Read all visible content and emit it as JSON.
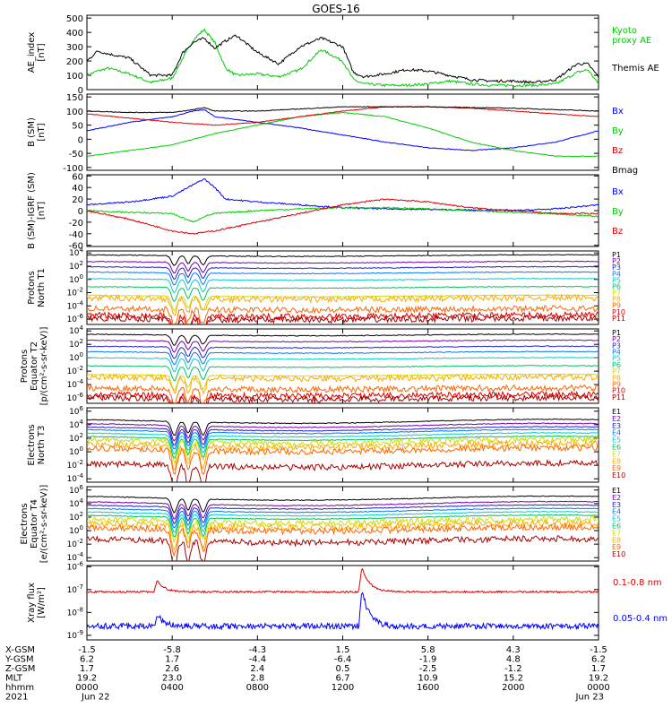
{
  "title": "GOES-16",
  "chart_data": [
    {
      "type": "line",
      "id": "ae",
      "ylabel": "AE_index\n[nT]",
      "yticks": [
        "500",
        "400",
        "300",
        "200",
        "100",
        "0"
      ],
      "ylim": [
        0,
        520
      ],
      "series": [
        {
          "name": "Kyoto\nproxy AE",
          "color": "#00cc00",
          "t": [
            0,
            0.5,
            1,
            2,
            3,
            4,
            4.5,
            5,
            5.5,
            6,
            6.5,
            7,
            8,
            9,
            10,
            11,
            12,
            12.5,
            13,
            14,
            15,
            16,
            17,
            18,
            19,
            20,
            21,
            22,
            23,
            23.5,
            24
          ],
          "values": [
            100,
            130,
            150,
            110,
            50,
            80,
            220,
            350,
            420,
            330,
            150,
            100,
            110,
            90,
            140,
            280,
            200,
            70,
            40,
            30,
            30,
            40,
            60,
            40,
            30,
            30,
            30,
            40,
            120,
            140,
            40
          ]
        },
        {
          "name": "Themis AE",
          "color": "#000000",
          "t": [
            0,
            0.5,
            1,
            2,
            3,
            4,
            4.5,
            5,
            5.5,
            6,
            6.5,
            7,
            8,
            9,
            10,
            11,
            12,
            12.5,
            13,
            14,
            15,
            16,
            17,
            18,
            19,
            20,
            21,
            22,
            23,
            23.5,
            24
          ],
          "values": [
            200,
            270,
            250,
            220,
            100,
            100,
            260,
            330,
            360,
            290,
            340,
            380,
            260,
            180,
            300,
            360,
            300,
            120,
            90,
            110,
            140,
            130,
            100,
            70,
            60,
            60,
            50,
            70,
            180,
            180,
            90
          ]
        }
      ]
    },
    {
      "type": "line",
      "id": "bsm",
      "ylabel": "B (SM)\n[nT]",
      "yticks": [
        "150",
        "100",
        "50",
        "0",
        "-50",
        "-100"
      ],
      "ylim": [
        -110,
        160
      ],
      "series": [
        {
          "name": "Bx",
          "color": "#0000ff",
          "t": [
            0,
            2,
            4,
            5,
            5.5,
            6,
            8,
            10,
            12,
            14,
            16,
            18,
            20,
            22,
            24
          ],
          "values": [
            30,
            60,
            80,
            100,
            105,
            80,
            60,
            40,
            15,
            -10,
            -30,
            -40,
            -30,
            -10,
            30
          ]
        },
        {
          "name": "By",
          "color": "#00cc00",
          "t": [
            0,
            2,
            4,
            5,
            6,
            8,
            10,
            12,
            14,
            16,
            18,
            20,
            22,
            24
          ],
          "values": [
            -60,
            -40,
            -20,
            0,
            20,
            50,
            80,
            95,
            80,
            40,
            -10,
            -40,
            -60,
            -60
          ]
        },
        {
          "name": "Bz",
          "color": "#dd0000",
          "t": [
            0,
            2,
            4,
            6,
            8,
            10,
            12,
            14,
            16,
            18,
            20,
            22,
            24
          ],
          "values": [
            90,
            75,
            60,
            50,
            60,
            80,
            100,
            115,
            115,
            110,
            100,
            90,
            80
          ]
        },
        {
          "name": "Bmag",
          "color": "#000000",
          "t": [
            0,
            2,
            4,
            5,
            5.5,
            6,
            8,
            12,
            16,
            20,
            24
          ],
          "values": [
            100,
            95,
            95,
            105,
            112,
            100,
            100,
            115,
            115,
            110,
            100
          ]
        }
      ]
    },
    {
      "type": "line",
      "id": "bigrf",
      "ylabel": "B (SM)-IGRF (SM)\n[nT]",
      "yticks": [
        "60",
        "40",
        "20",
        "0",
        "-20",
        "-40",
        "-60"
      ],
      "ylim": [
        -62,
        62
      ],
      "series": [
        {
          "name": "Bx",
          "color": "#0000ff",
          "t": [
            0,
            2,
            4,
            5,
            5.5,
            6,
            6.5,
            8,
            10,
            12,
            14,
            16,
            18,
            20,
            22,
            24
          ],
          "values": [
            10,
            15,
            25,
            45,
            55,
            40,
            20,
            15,
            10,
            5,
            3,
            2,
            1,
            0,
            3,
            10
          ]
        },
        {
          "name": "By",
          "color": "#00cc00",
          "t": [
            0,
            2,
            4,
            5,
            5.5,
            6,
            8,
            10,
            12,
            14,
            16,
            18,
            20,
            22,
            24
          ],
          "values": [
            0,
            -3,
            -5,
            -20,
            -10,
            -5,
            0,
            3,
            5,
            5,
            3,
            0,
            -3,
            -6,
            -10
          ]
        },
        {
          "name": "Bz",
          "color": "#dd0000",
          "t": [
            0,
            2,
            4,
            5,
            6,
            8,
            10,
            12,
            14,
            16,
            18,
            20,
            22,
            24
          ],
          "values": [
            0,
            -15,
            -35,
            -40,
            -35,
            -20,
            -5,
            10,
            20,
            15,
            5,
            0,
            -5,
            -5
          ]
        }
      ]
    },
    {
      "type": "line",
      "id": "p1",
      "log": true,
      "ylabel": "Protons\nNorth T1",
      "yticks": [
        4,
        2,
        0,
        -2,
        -4,
        -6
      ],
      "ylim": [
        -6.8,
        4.3
      ],
      "channels": [
        "P1",
        "P2",
        "P3",
        "P4",
        "P5",
        "P6",
        "P7",
        "P8",
        "P9",
        "P10",
        "P11"
      ],
      "channel_colors": [
        "#000000",
        "#7700aa",
        "#2222cc",
        "#0077ff",
        "#00cccc",
        "#00c060",
        "#ccdd00",
        "#ffaa00",
        "#ff6600",
        "#dd0000",
        "#aa0000"
      ],
      "levels": [
        3.6,
        2.6,
        1.8,
        1.0,
        0.0,
        -1.2,
        -2.5,
        -2.9,
        -4.5,
        -5.5,
        -6.0
      ],
      "dip_depth": 2.5
    },
    {
      "type": "line",
      "id": "p2",
      "log": true,
      "ylabel": "Protons\nEquator T2\n[p/(cm²-s-sr-keV)]",
      "yticks": [
        4,
        2,
        0,
        -2,
        -4,
        -6
      ],
      "ylim": [
        -6.8,
        4.3
      ],
      "channels": [
        "P1",
        "P2",
        "P3",
        "P4",
        "P5",
        "P6",
        "P7",
        "P8",
        "P9",
        "P10",
        "P11"
      ],
      "channel_colors": [
        "#000000",
        "#7700aa",
        "#2222cc",
        "#0077ff",
        "#00cccc",
        "#00c060",
        "#ccdd00",
        "#ffaa00",
        "#ff6600",
        "#dd0000",
        "#aa0000"
      ],
      "levels": [
        3.4,
        2.5,
        1.6,
        0.8,
        -0.1,
        -1.3,
        -2.6,
        -3.0,
        -4.6,
        -5.6,
        -6.1
      ],
      "dip_depth": 2.5
    },
    {
      "type": "line",
      "id": "e3",
      "log": true,
      "ylabel": "Electrons\nNorth T3",
      "yticks": [
        6,
        4,
        2,
        0,
        -2,
        -4
      ],
      "ylim": [
        -4.5,
        6.5
      ],
      "channels": [
        "E1",
        "E2",
        "E3",
        "E4",
        "E5",
        "E6",
        "E7",
        "E8",
        "E9",
        "E10"
      ],
      "channel_colors": [
        "#000000",
        "#7700aa",
        "#2222cc",
        "#0077ff",
        "#00cccc",
        "#00c060",
        "#ccdd00",
        "#ffaa00",
        "#ff6600",
        "#aa0000"
      ],
      "levels": [
        4.5,
        3.9,
        3.4,
        3.0,
        2.5,
        2.0,
        1.5,
        0.9,
        0.3,
        -2.0
      ],
      "dip_depth": 3.5
    },
    {
      "type": "line",
      "id": "e4",
      "log": true,
      "ylabel": "Electrons\nEquator T4\n[e/(cm²-s-sr-keV)]",
      "yticks": [
        6,
        4,
        2,
        0,
        -2,
        -4
      ],
      "ylim": [
        -4.5,
        6.5
      ],
      "channels": [
        "E1",
        "E2",
        "E3",
        "E4",
        "E5",
        "E6",
        "E7",
        "E8",
        "E9",
        "E10"
      ],
      "channel_colors": [
        "#000000",
        "#7700aa",
        "#2222cc",
        "#0077ff",
        "#00cccc",
        "#00c060",
        "#ccdd00",
        "#ffaa00",
        "#ff6600",
        "#aa0000"
      ],
      "levels": [
        4.8,
        4.0,
        3.5,
        3.0,
        2.5,
        2.0,
        1.4,
        0.8,
        0.2,
        -1.5
      ],
      "dip_depth": 3.5
    },
    {
      "type": "line",
      "id": "xray",
      "log": true,
      "ylabel": "Xray flux\n[W/m²]",
      "yticks": [
        -6,
        -7,
        -8,
        -9
      ],
      "ylim": [
        -9.2,
        -5.95
      ],
      "series": [
        {
          "name": "0.1-0.8 nm",
          "color": "#dd0000",
          "base": -7.1,
          "peaks": [
            [
              3.3,
              0.5
            ],
            [
              12.9,
              1.1
            ]
          ]
        },
        {
          "name": "0.05-0.4 nm",
          "color": "#0000ff",
          "base": -8.6,
          "peaks": [
            [
              3.3,
              0.5
            ],
            [
              12.9,
              1.6
            ]
          ]
        }
      ]
    }
  ],
  "x_axis": {
    "rows": [
      {
        "label": "X-GSM",
        "values": [
          "-1.5",
          "-5.8",
          "-4.3",
          "1.5",
          "5.8",
          "4.3",
          "-1.5"
        ]
      },
      {
        "label": "Y-GSM",
        "values": [
          "6.2",
          "1.7",
          "-4.4",
          "-6.4",
          "-1.9",
          "4.8",
          "6.2"
        ]
      },
      {
        "label": "Z-GSM",
        "values": [
          "1.7",
          "2.6",
          "2.4",
          "0.5",
          "-2.5",
          "-1.2",
          "1.7"
        ]
      },
      {
        "label": "MLT",
        "values": [
          "19.2",
          "23.0",
          "2.8",
          "6.7",
          "10.9",
          "15.2",
          "19.2"
        ]
      },
      {
        "label": "hhmm",
        "values": [
          "0000",
          "0400",
          "0800",
          "1200",
          "1600",
          "2000",
          "0000"
        ]
      },
      {
        "label": "2021",
        "values": [
          "Jun 22",
          "",
          "",
          "",
          "",
          "",
          "Jun 23"
        ]
      }
    ]
  }
}
